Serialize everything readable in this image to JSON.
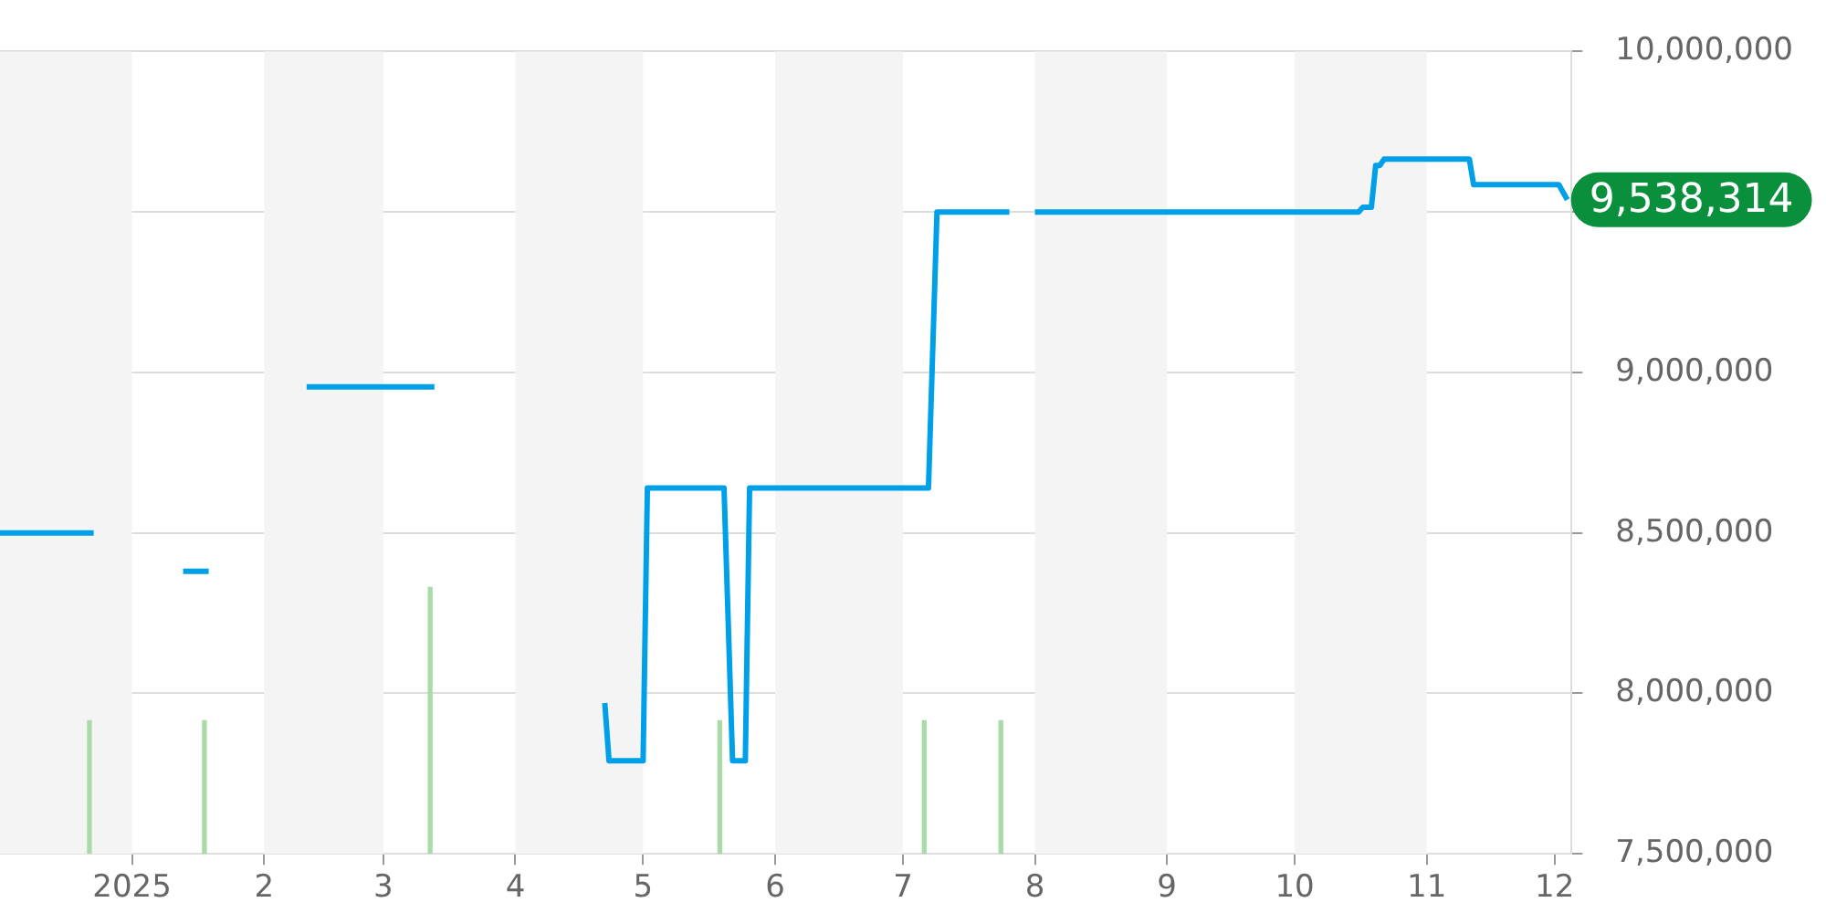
{
  "chart_data": {
    "type": "line",
    "series": [
      {
        "color": "#00a0e9",
        "x": [
          "2024-12-01",
          "2024-12-23",
          "2024-12-24",
          "2025-01-13",
          "2025-01-19",
          "2025-01-20",
          "2025-02-11",
          "2025-03-13",
          "2025-03-14",
          "2025-04-22",
          "2025-04-23",
          "2025-05-01",
          "2025-05-02",
          "2025-05-20",
          "2025-05-22",
          "2025-05-25",
          "2025-05-26",
          "2025-07-07",
          "2025-07-09",
          "2025-07-26",
          "2025-07-27",
          "2025-08-01",
          "2025-10-16",
          "2025-10-17",
          "2025-10-19",
          "2025-10-20",
          "2025-10-21",
          "2025-10-22",
          "2025-11-11",
          "2025-11-12",
          "2025-12-02",
          "2025-12-04"
        ],
        "values": [
          8500000,
          8500000,
          null,
          8380000,
          8380000,
          null,
          8955000,
          8955000,
          null,
          7970000,
          7790000,
          7790000,
          8640000,
          8640000,
          7790000,
          7790000,
          8640000,
          8640000,
          9500000,
          9500000,
          null,
          9500000,
          9500000,
          9515000,
          9515000,
          9645000,
          9645000,
          9665000,
          9665000,
          9585000,
          9585000,
          9538314
        ]
      },
      {
        "type": "bar",
        "color": "#a8dba8",
        "x": [
          "2024-12-22",
          "2025-01-18",
          "2025-03-12",
          "2025-05-19",
          "2025-07-06",
          "2025-07-24"
        ],
        "values": [
          7915000,
          7915000,
          8330000,
          7915000,
          7915000,
          7915000
        ]
      }
    ],
    "xlim": [
      "2024-12-01",
      "2025-12-05"
    ],
    "xticks": [
      {
        "value": "2025-01-01",
        "label": "2025"
      },
      {
        "value": "2025-02-01",
        "label": "2"
      },
      {
        "value": "2025-03-01",
        "label": "3"
      },
      {
        "value": "2025-04-01",
        "label": "4"
      },
      {
        "value": "2025-05-01",
        "label": "5"
      },
      {
        "value": "2025-06-01",
        "label": "6"
      },
      {
        "value": "2025-07-01",
        "label": "7"
      },
      {
        "value": "2025-08-01",
        "label": "8"
      },
      {
        "value": "2025-09-01",
        "label": "9"
      },
      {
        "value": "2025-10-01",
        "label": "10"
      },
      {
        "value": "2025-11-01",
        "label": "11"
      },
      {
        "value": "2025-12-01",
        "label": "12"
      }
    ],
    "ylim": [
      7500000,
      10000000
    ],
    "yticks": [
      {
        "value": 7500000,
        "label": "7,500,000"
      },
      {
        "value": 8000000,
        "label": "8,000,000"
      },
      {
        "value": 8500000,
        "label": "8,500,000"
      },
      {
        "value": 9000000,
        "label": "9,000,000"
      },
      {
        "value": 9500000,
        "label": null
      },
      {
        "value": 10000000,
        "label": "10,000,000"
      }
    ],
    "bands": [
      {
        "axis": "x",
        "from": "2024-12-01",
        "to": "2025-01-01",
        "color": "#f4f4f4"
      },
      {
        "axis": "x",
        "from": "2025-02-01",
        "to": "2025-03-01",
        "color": "#f4f4f4"
      },
      {
        "axis": "x",
        "from": "2025-04-01",
        "to": "2025-05-01",
        "color": "#f4f4f4"
      },
      {
        "axis": "x",
        "from": "2025-06-01",
        "to": "2025-07-01",
        "color": "#f4f4f4"
      },
      {
        "axis": "x",
        "from": "2025-08-01",
        "to": "2025-09-01",
        "color": "#f4f4f4"
      },
      {
        "axis": "x",
        "from": "2025-10-01",
        "to": "2025-11-01",
        "color": "#f4f4f4"
      }
    ],
    "annotations": [
      {
        "text": "9,538,314",
        "x": "2025-12-04",
        "y": 9538314
      }
    ],
    "grid": "y",
    "legend": false,
    "marker": "none",
    "line_style": "solid"
  }
}
